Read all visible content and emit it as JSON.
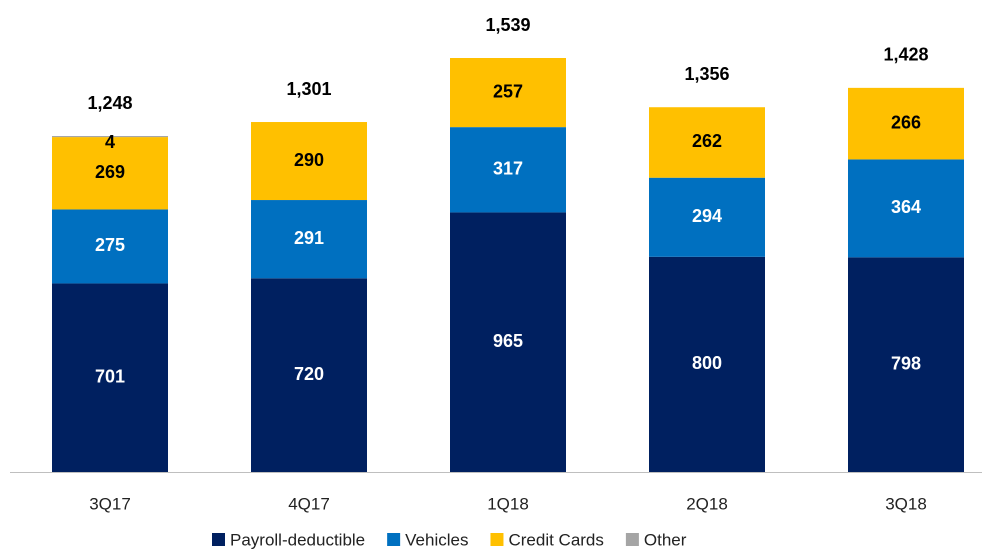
{
  "chart_data": {
    "type": "stacked_bar",
    "categories": [
      "3Q17",
      "4Q17",
      "1Q18",
      "2Q18",
      "3Q18"
    ],
    "series": [
      {
        "name": "Payroll-deductible",
        "color": "#002060",
        "values": [
          701,
          720,
          965,
          800,
          798
        ]
      },
      {
        "name": "Vehicles",
        "color": "#0070c0",
        "values": [
          275,
          291,
          317,
          294,
          364
        ]
      },
      {
        "name": "Credit Cards",
        "color": "#ffc000",
        "values": [
          269,
          290,
          257,
          262,
          266
        ]
      },
      {
        "name": "Other",
        "color": "#a5a5a5",
        "values": [
          4,
          null,
          null,
          null,
          null
        ]
      }
    ],
    "totals": [
      1248,
      1301,
      1539,
      1356,
      1428
    ],
    "total_labels": [
      "1,248",
      "1,301",
      "1,539",
      "1,356",
      "1,428"
    ],
    "legend": "bottom"
  }
}
